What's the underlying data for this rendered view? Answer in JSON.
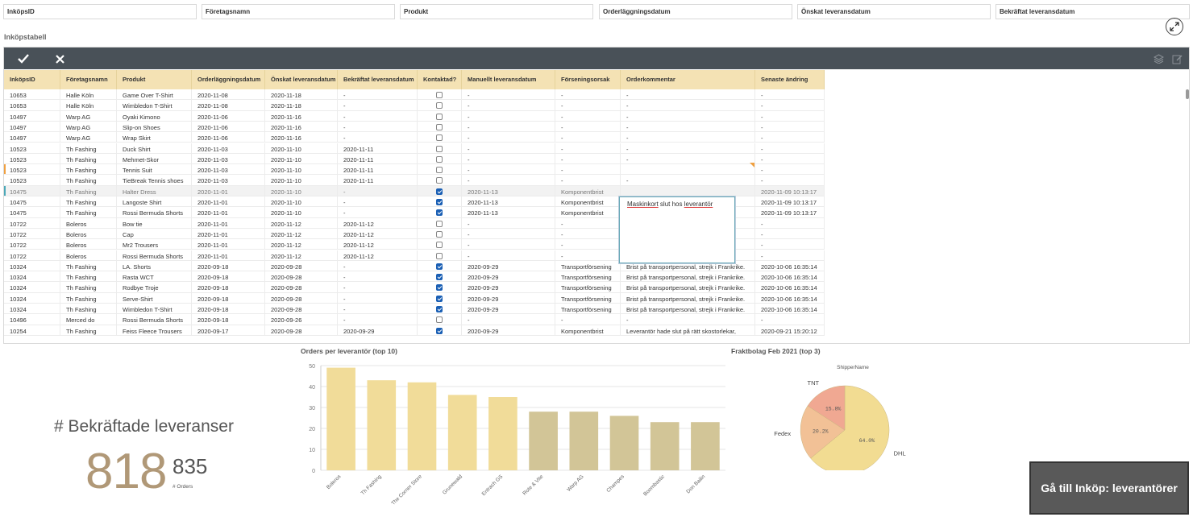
{
  "filters": [
    "InköpsID",
    "Företagsnamn",
    "Produkt",
    "Orderläggningsdatum",
    "Önskat leveransdatum",
    "Bekräftat leveransdatum"
  ],
  "section_title": "Inköpstabell",
  "table": {
    "headers": [
      "InköpsID",
      "Företagsnamn",
      "Produkt",
      "Orderläggningsdatum",
      "Önskat leveransdatum",
      "Bekräftat leveransdatum",
      "Kontaktad?",
      "Manuellt leveransdatum",
      "Förseningsorsak",
      "Orderkommentar",
      "Senaste ändring"
    ],
    "rows": [
      [
        "10653",
        "Halle Köln",
        "Game Over T-Shirt",
        "2020-11-08",
        "2020-11-18",
        "-",
        false,
        "-",
        "-",
        "-",
        "-"
      ],
      [
        "10653",
        "Halle Köln",
        "Wimbledon T-Shirt",
        "2020-11-08",
        "2020-11-18",
        "-",
        false,
        "-",
        "-",
        "-",
        "-"
      ],
      [
        "10497",
        "Warp AG",
        "Oyaki Kimono",
        "2020-11-06",
        "2020-11-16",
        "-",
        false,
        "-",
        "-",
        "-",
        "-"
      ],
      [
        "10497",
        "Warp AG",
        "Slip-on Shoes",
        "2020-11-06",
        "2020-11-16",
        "-",
        false,
        "-",
        "-",
        "-",
        "-"
      ],
      [
        "10497",
        "Warp AG",
        "Wrap Skirt",
        "2020-11-06",
        "2020-11-16",
        "-",
        false,
        "-",
        "-",
        "-",
        "-"
      ],
      [
        "10523",
        "Th Fashing",
        "Duck Shirt",
        "2020-11-03",
        "2020-11-10",
        "2020-11-11",
        false,
        "-",
        "-",
        "-",
        "-"
      ],
      [
        "10523",
        "Th Fashing",
        "Mehmet-Skor",
        "2020-11-03",
        "2020-11-10",
        "2020-11-11",
        false,
        "-",
        "-",
        "-",
        "-"
      ],
      [
        "10523",
        "Th Fashing",
        "Tennis Suit",
        "2020-11-03",
        "2020-11-10",
        "2020-11-11",
        false,
        "-",
        "-",
        "",
        "-"
      ],
      [
        "10523",
        "Th Fashing",
        "TieBreak Tennis shoes",
        "2020-11-03",
        "2020-11-10",
        "2020-11-11",
        false,
        "-",
        "-",
        "-",
        "-"
      ],
      [
        "10475",
        "Th Fashing",
        "Halter Dress",
        "2020-11-01",
        "2020-11-10",
        "-",
        true,
        "2020-11-13",
        "Komponentbrist",
        "",
        "2020-11-09 10:13:17"
      ],
      [
        "10475",
        "Th Fashing",
        "Langoste Shirt",
        "2020-11-01",
        "2020-11-10",
        "-",
        true,
        "2020-11-13",
        "Komponentbrist",
        "",
        "2020-11-09 10:13:17"
      ],
      [
        "10475",
        "Th Fashing",
        "Rossi Bermuda Shorts",
        "2020-11-01",
        "2020-11-10",
        "-",
        true,
        "2020-11-13",
        "Komponentbrist",
        "",
        "2020-11-09 10:13:17"
      ],
      [
        "10722",
        "Boleros",
        "Bow tie",
        "2020-11-01",
        "2020-11-12",
        "2020-11-12",
        false,
        "-",
        "-",
        "",
        "-"
      ],
      [
        "10722",
        "Boleros",
        "Cap",
        "2020-11-01",
        "2020-11-12",
        "2020-11-12",
        false,
        "-",
        "-",
        "",
        "-"
      ],
      [
        "10722",
        "Boleros",
        "Mr2 Trousers",
        "2020-11-01",
        "2020-11-12",
        "2020-11-12",
        false,
        "-",
        "-",
        "",
        "-"
      ],
      [
        "10722",
        "Boleros",
        "Rossi Bermuda Shorts",
        "2020-11-01",
        "2020-11-12",
        "2020-11-12",
        false,
        "-",
        "-",
        "",
        "-"
      ],
      [
        "10324",
        "Th Fashing",
        "LA. Shorts",
        "2020-09-18",
        "2020-09-28",
        "-",
        true,
        "2020-09-29",
        "Transportförsening",
        "Brist på transportpersonal, strejk i Frankrike.",
        "2020-10-06 16:35:14"
      ],
      [
        "10324",
        "Th Fashing",
        "Rasta WCT",
        "2020-09-18",
        "2020-09-28",
        "-",
        true,
        "2020-09-29",
        "Transportförsening",
        "Brist på transportpersonal, strejk i Frankrike.",
        "2020-10-06 16:35:14"
      ],
      [
        "10324",
        "Th Fashing",
        "Rodbye Troje",
        "2020-09-18",
        "2020-09-28",
        "-",
        true,
        "2020-09-29",
        "Transportförsening",
        "Brist på transportpersonal, strejk i Frankrike.",
        "2020-10-06 16:35:14"
      ],
      [
        "10324",
        "Th Fashing",
        "Serve-Shirt",
        "2020-09-18",
        "2020-09-28",
        "-",
        true,
        "2020-09-29",
        "Transportförsening",
        "Brist på transportpersonal, strejk i Frankrike.",
        "2020-10-06 16:35:14"
      ],
      [
        "10324",
        "Th Fashing",
        "Wimbledon T-Shirt",
        "2020-09-18",
        "2020-09-28",
        "-",
        true,
        "2020-09-29",
        "Transportförsening",
        "Brist på transportpersonal, strejk i Frankrike.",
        "2020-10-06 16:35:14"
      ],
      [
        "10496",
        "Merced do",
        "Rossi Bermuda Shorts",
        "2020-09-18",
        "2020-09-26",
        "-",
        false,
        "-",
        "-",
        "-",
        "-"
      ],
      [
        "10254",
        "Th Fashing",
        "Feiss Fleece Trousers",
        "2020-09-17",
        "2020-09-28",
        "2020-09-29",
        true,
        "2020-09-29",
        "Komponentbrist",
        "Leverantör hade slut på rätt skostorlekar,",
        "2020-09-21 15:20:12"
      ]
    ]
  },
  "comment_editor": {
    "word1": "Maskinkort",
    "word2": "slut hos",
    "word3": "leverantör"
  },
  "kpi": {
    "title": "# Bekräftade leveranser",
    "value": "818",
    "total": "835",
    "total_label": "# Orders"
  },
  "bar_chart_title": "Orders per leverantör (top 10)",
  "pie_chart_title": "Fraktbolag Feb 2021 (top 3)",
  "nav_button": "Gå till Inköp: leverantörer",
  "colors": {
    "bar_light": "#f1dc99",
    "bar_dark": "#d2c597",
    "pie_dhl": "#f2dc92",
    "pie_fedex": "#f2c196",
    "pie_tnt": "#f0a892",
    "header": "#f4e2b4",
    "toolbar": "#495158",
    "kpi": "#b09877"
  },
  "chart_data": [
    {
      "type": "bar",
      "title": "Orders per leverantör (top 10)",
      "categories": [
        "Boleros",
        "Th Fashing",
        "The Corner Store",
        "Grunewald",
        "Entrach GS",
        "Rote & Vite",
        "Warp AG",
        "Champes",
        "Boombastic",
        "Don Bailin"
      ],
      "values": [
        49,
        43,
        42,
        36,
        35,
        28,
        28,
        26,
        23,
        23
      ],
      "ylim": [
        0,
        50
      ],
      "yticks": [
        "0",
        "10",
        "20",
        "30",
        "40",
        "50"
      ],
      "grid": true,
      "xlabel": "",
      "ylabel": ""
    },
    {
      "type": "pie",
      "title": "Fraktbolag Feb 2021 (top 3)",
      "legend_title": "ShipperName",
      "labels": [
        "DHL",
        "Fedex",
        "TNT"
      ],
      "values": [
        64.0,
        20.2,
        15.8
      ],
      "value_labels": [
        "64.0%",
        "20.2%",
        "15.8%"
      ]
    }
  ]
}
